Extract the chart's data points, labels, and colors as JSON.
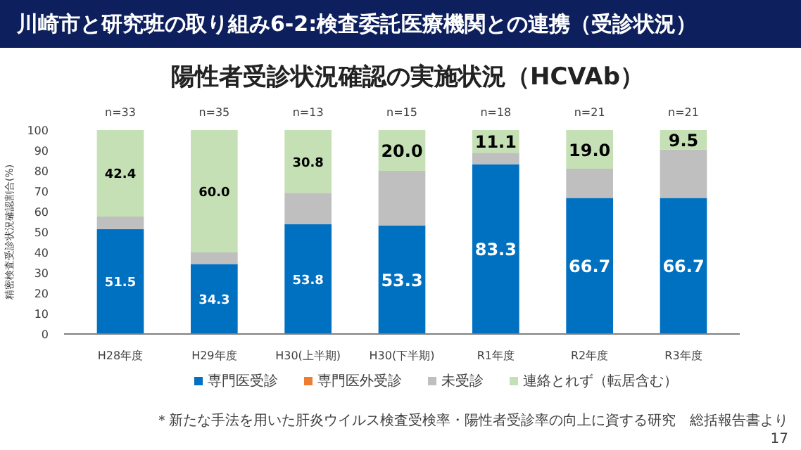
{
  "chart_data": {
    "type": "bar",
    "stacked": true,
    "title": "川崎市と研究班の取り組み6-2:検査委託医療機関との連携（受診状況）",
    "subtitle": "陽性者受診状況確認の実施状況（HCVAb）",
    "ylabel": "精密検査受診状況確認割合(%)",
    "categories": [
      "H28年度",
      "H29年度",
      "H30(上半期)",
      "H30(下半期)",
      "R1年度",
      "R2年度",
      "R3年度"
    ],
    "series": [
      {
        "name": "専門医受診",
        "color": "#0070c0",
        "values": [
          51.5,
          34.3,
          53.8,
          53.3,
          83.3,
          66.7,
          66.7
        ],
        "value_labels": [
          "51.5",
          "34.3",
          "53.8",
          "53.3",
          "83.3",
          "66.7",
          "66.7"
        ]
      },
      {
        "name": "専門医外受診",
        "color": "#ed7d31",
        "values": [
          0,
          0,
          0,
          0,
          0,
          0,
          0
        ],
        "value_labels": [
          null,
          null,
          null,
          null,
          null,
          null,
          null
        ]
      },
      {
        "name": "未受診",
        "color": "#bfbfbf",
        "values": [
          6.1,
          5.7,
          15.4,
          26.7,
          5.6,
          14.3,
          23.8
        ],
        "value_labels": [
          null,
          null,
          null,
          null,
          null,
          null,
          null
        ]
      },
      {
        "name": "連絡とれず（転居含む）",
        "color": "#c5e0b4",
        "values": [
          42.4,
          60.0,
          30.8,
          20.0,
          11.1,
          19.0,
          9.5
        ],
        "value_labels": [
          "42.4",
          "60.0",
          "30.8",
          "20.0",
          "11.1",
          "19.0",
          "9.5"
        ]
      }
    ],
    "ylim": [
      0,
      100
    ],
    "yticks": [
      0,
      10,
      20,
      30,
      40,
      50,
      60,
      70,
      80,
      90,
      100
    ],
    "grid": false,
    "legend": "bottom",
    "annotations": [
      {
        "text": "n=33",
        "x": "H28年度",
        "y": 100
      },
      {
        "text": "n=35",
        "x": "H29年度",
        "y": 100
      },
      {
        "text": "n=13",
        "x": "H30(上半期)",
        "y": 100
      },
      {
        "text": "n=15",
        "x": "H30(下半期)",
        "y": 100
      },
      {
        "text": "n=18",
        "x": "R1年度",
        "y": 100
      },
      {
        "text": "n=21",
        "x": "R2年度",
        "y": 100
      },
      {
        "text": "n=21",
        "x": "R3年度",
        "y": 100
      },
      "＊新たな手法を用いた肝炎ウイルス検査受検率・陽性者受診率の向上に資する研究　総括報告書より",
      "17"
    ]
  }
}
